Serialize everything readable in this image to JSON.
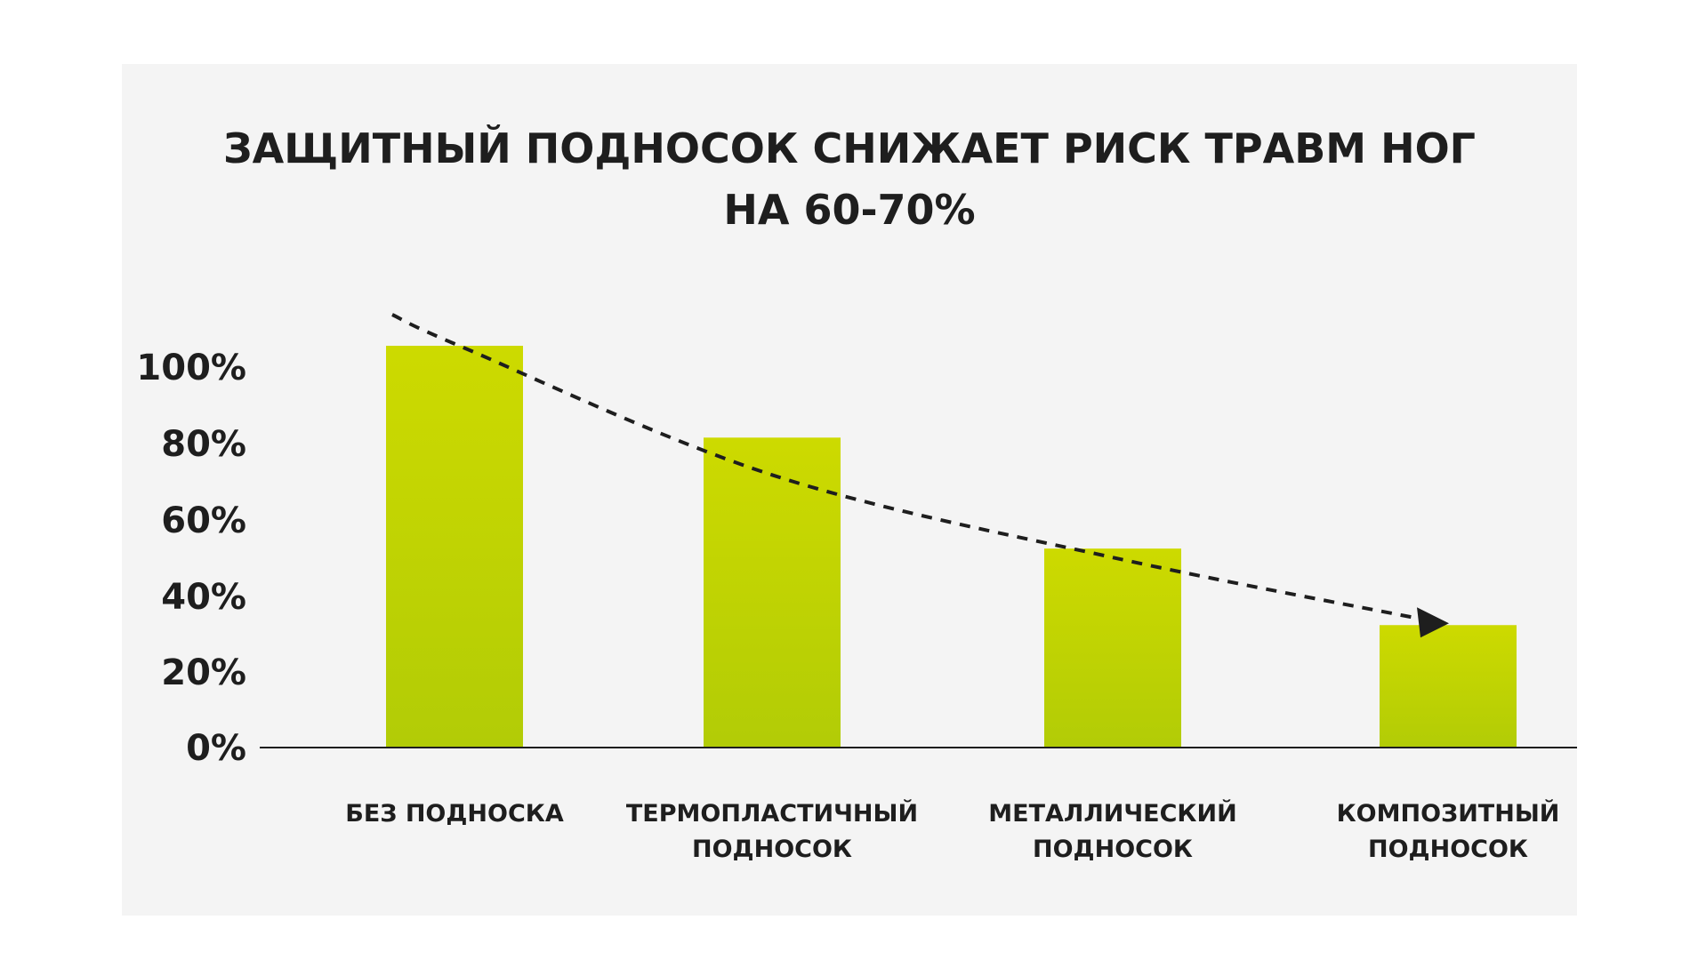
{
  "chart_data": {
    "type": "bar",
    "title_lines": [
      "ЗАЩИТНЫЙ ПОДНОСОК СНИЖАЕТ РИСК ТРАВМ НОГ",
      "НА 60-70%"
    ],
    "categories": [
      [
        "БЕЗ ПОДНОСКА"
      ],
      [
        "ТЕРМОПЛАСТИЧНЫЙ",
        "ПОДНОСОК"
      ],
      [
        "МЕТАЛЛИЧЕСКИЙ",
        "ПОДНОСОК"
      ],
      [
        "КОМПОЗИТНЫЙ",
        "ПОДНОСОК"
      ]
    ],
    "values": [
      105,
      81,
      52,
      32
    ],
    "yticks": [
      "0%",
      "20%",
      "40%",
      "60%",
      "80%",
      "100%"
    ],
    "ytick_values": [
      0,
      20,
      40,
      60,
      80,
      100
    ],
    "ylim": [
      0,
      105
    ],
    "grid": false,
    "trend_line": {
      "style": "dashed",
      "arrow": true
    },
    "colors": {
      "bar_top": "#cdda00",
      "bar_bottom": "#b2cc06",
      "text": "#1e1e1e",
      "panel": "#f4f4f4",
      "trend": "#1e1e1e"
    }
  }
}
